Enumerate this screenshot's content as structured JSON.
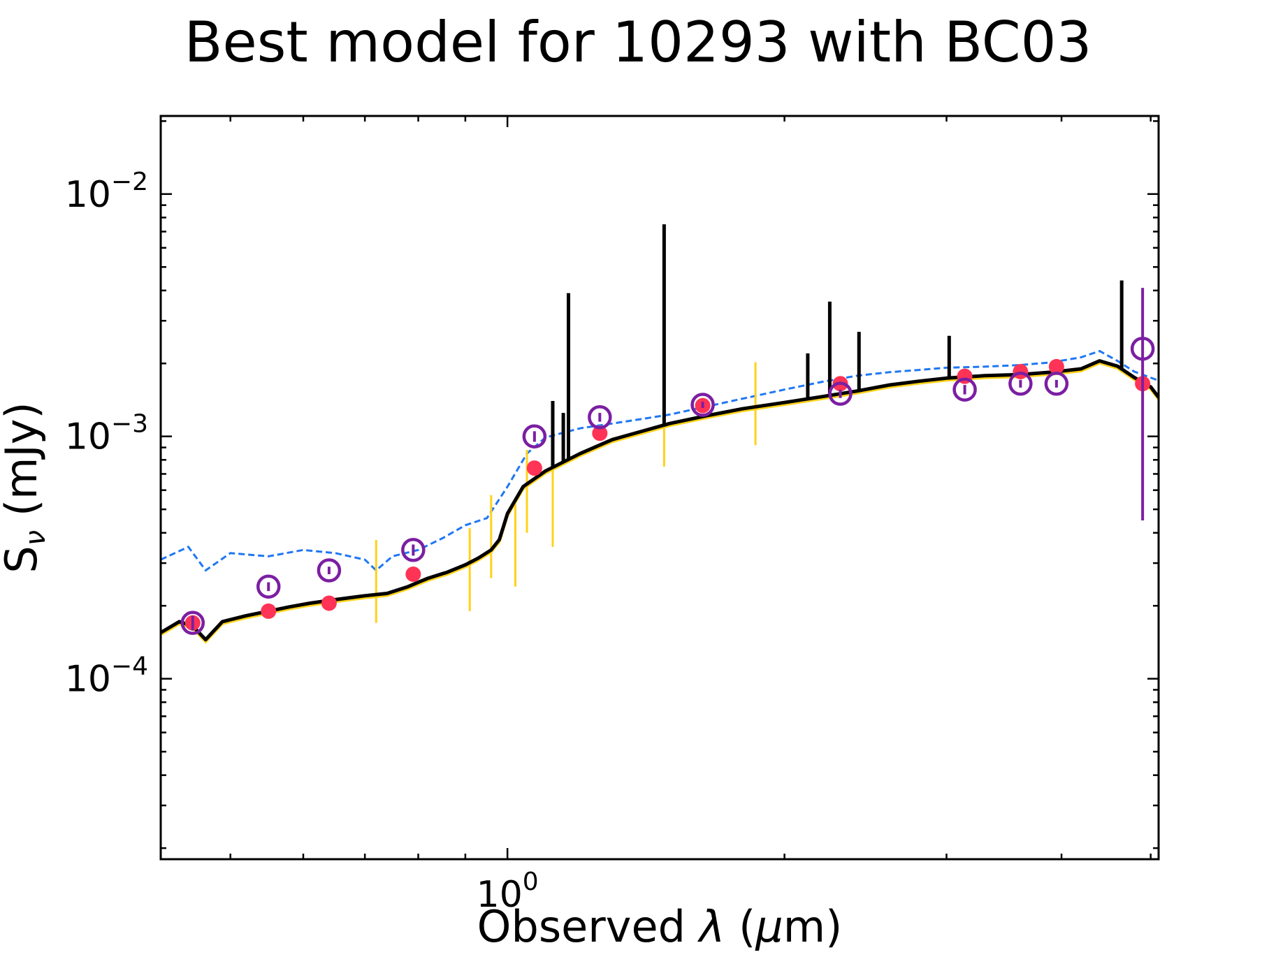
{
  "chart_data": {
    "type": "scatter",
    "title": "Best model for 10293 with BC03",
    "xlabel": "Observed",
    "xlabel_symbol": "λ",
    "xlabel_unit_open": "(",
    "xlabel_unit_symbol": "μ",
    "xlabel_unit_rest": "m)",
    "ylabel": "S",
    "ylabel_subscript": "ν",
    "ylabel_unit": "(mJy)",
    "xscale": "log",
    "yscale": "log",
    "xlim": [
      0.42,
      5.1
    ],
    "ylim": [
      1.8e-05,
      0.021
    ],
    "x_tick_labels": [
      {
        "value": 1.0,
        "base": "10",
        "exp": "0"
      }
    ],
    "y_tick_labels": [
      {
        "value": 0.0001,
        "base": "10",
        "exp": "−4"
      },
      {
        "value": 0.001,
        "base": "10",
        "exp": "−3"
      },
      {
        "value": 0.01,
        "base": "10",
        "exp": "−2"
      }
    ],
    "colors": {
      "model": "#000000",
      "unattenuated": "#1f77f4",
      "attenuated_stellar": "#ffd21a",
      "model_fluxes": "#ff3355",
      "observed_fluxes": "#7b1fa2"
    },
    "series": [
      {
        "style": "solid-thick",
        "color": "#000000",
        "x": [
          0.42,
          0.44,
          0.455,
          0.47,
          0.49,
          0.52,
          0.55,
          0.58,
          0.61,
          0.65,
          0.7,
          0.74,
          0.78,
          0.8,
          0.82,
          0.86,
          0.9,
          0.93,
          0.96,
          0.98,
          1.0,
          1.04,
          1.1,
          1.2,
          1.3,
          1.4,
          1.5,
          1.65,
          1.8,
          2.0,
          2.2,
          2.4,
          2.6,
          2.8,
          3.0,
          3.3,
          3.6,
          3.9,
          4.2,
          4.4,
          4.6,
          4.8,
          5.0,
          5.1
        ],
        "y": [
          0.000155,
          0.000172,
          0.000165,
          0.000145,
          0.000172,
          0.000182,
          0.00019,
          0.000198,
          0.000205,
          0.000212,
          0.00022,
          0.000225,
          0.00024,
          0.00025,
          0.00026,
          0.000275,
          0.000295,
          0.000315,
          0.00034,
          0.000375,
          0.00048,
          0.00062,
          0.00072,
          0.00085,
          0.00097,
          0.00105,
          0.00113,
          0.00122,
          0.0013,
          0.00138,
          0.00146,
          0.00154,
          0.00163,
          0.00169,
          0.00174,
          0.00178,
          0.0018,
          0.00184,
          0.0019,
          0.00205,
          0.00195,
          0.00175,
          0.0016,
          0.00145
        ]
      },
      {
        "style": "dashed",
        "color": "#1f77f4",
        "x": [
          0.42,
          0.45,
          0.47,
          0.5,
          0.55,
          0.6,
          0.65,
          0.7,
          0.72,
          0.75,
          0.8,
          0.85,
          0.9,
          0.95,
          1.0,
          1.05,
          1.1,
          1.2,
          1.3,
          1.4,
          1.5,
          1.65,
          1.8,
          2.0,
          2.2,
          2.4,
          2.6,
          2.8,
          3.0,
          3.3,
          3.6,
          3.9,
          4.2,
          4.4,
          4.6,
          4.8,
          5.1
        ],
        "y": [
          0.00031,
          0.00035,
          0.00028,
          0.00033,
          0.00032,
          0.00034,
          0.00033,
          0.00031,
          0.00028,
          0.00032,
          0.00034,
          0.00038,
          0.00043,
          0.00046,
          0.00062,
          0.00085,
          0.00099,
          0.00108,
          0.00113,
          0.00118,
          0.00123,
          0.00133,
          0.00143,
          0.00156,
          0.00168,
          0.00178,
          0.00184,
          0.00188,
          0.00192,
          0.00194,
          0.00197,
          0.00202,
          0.00212,
          0.00225,
          0.00205,
          0.00185,
          0.0017
        ]
      }
    ],
    "emission_lines": [
      {
        "x": 1.12,
        "y": 0.0014
      },
      {
        "x": 1.15,
        "y": 0.00125
      },
      {
        "x": 1.165,
        "y": 0.0039
      },
      {
        "x": 1.48,
        "y": 0.0075
      },
      {
        "x": 2.12,
        "y": 0.0022
      },
      {
        "x": 2.24,
        "y": 0.0036
      },
      {
        "x": 2.41,
        "y": 0.0027
      },
      {
        "x": 3.02,
        "y": 0.0026
      },
      {
        "x": 4.65,
        "y": 0.0044
      }
    ],
    "absorption_features": [
      {
        "x": 0.72,
        "y": 0.00017
      },
      {
        "x": 0.91,
        "y": 0.00019
      },
      {
        "x": 0.96,
        "y": 0.00026
      },
      {
        "x": 1.02,
        "y": 0.00024
      },
      {
        "x": 1.05,
        "y": 0.0004
      },
      {
        "x": 1.12,
        "y": 0.00035
      },
      {
        "x": 1.48,
        "y": 0.00075
      },
      {
        "x": 1.86,
        "y": 0.00092
      }
    ],
    "model_fluxes": {
      "x": [
        0.455,
        0.55,
        0.64,
        0.79,
        1.07,
        1.26,
        1.63,
        2.3,
        3.14,
        3.61,
        3.95,
        4.9
      ],
      "y": [
        0.00017,
        0.00019,
        0.000205,
        0.00027,
        0.00074,
        0.00103,
        0.00134,
        0.00165,
        0.00177,
        0.00185,
        0.00194,
        0.00165
      ]
    },
    "observed_fluxes": {
      "x": [
        0.455,
        0.55,
        0.64,
        0.79,
        1.07,
        1.26,
        1.63,
        2.3,
        3.14,
        3.61,
        3.95,
        4.9
      ],
      "y": [
        0.00017,
        0.00024,
        0.00028,
        0.00034,
        0.001,
        0.0012,
        0.00135,
        0.0015,
        0.00156,
        0.00165,
        0.00165,
        0.0023
      ],
      "err_lo": [
        1.2e-05,
        1e-05,
        1e-05,
        1.8e-05,
        5e-05,
        5e-05,
        4e-05,
        6e-05,
        7e-05,
        6e-05,
        6e-05,
        0.00185
      ],
      "err_hi": [
        1.2e-05,
        1e-05,
        1e-05,
        1.8e-05,
        5e-05,
        5e-05,
        4e-05,
        6e-05,
        7e-05,
        6e-05,
        6e-05,
        0.0018
      ]
    }
  }
}
